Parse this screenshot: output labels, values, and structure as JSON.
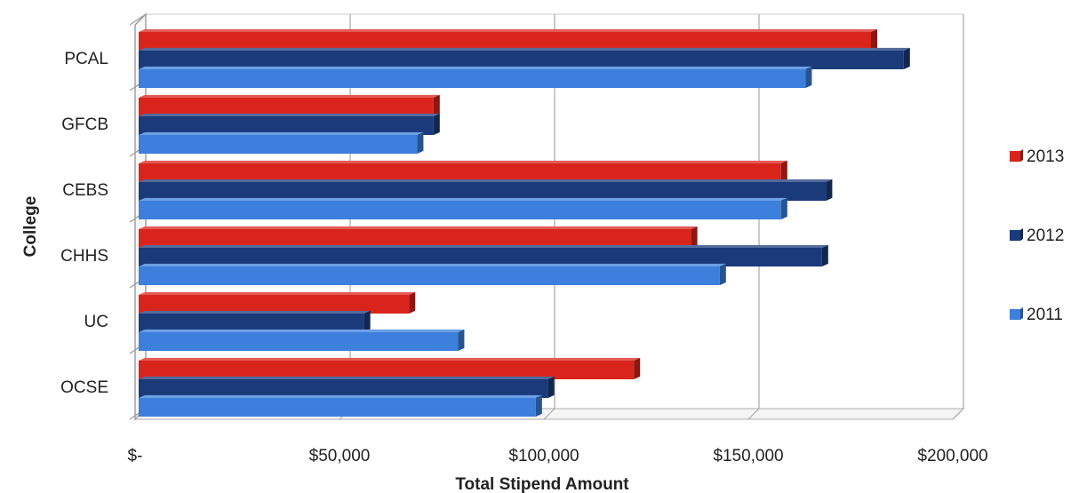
{
  "chart_data": {
    "type": "bar",
    "orientation": "horizontal",
    "three_d": true,
    "title": "",
    "xlabel": "Total Stipend Amount",
    "ylabel": "College",
    "categories": [
      "PCAL",
      "GFCB",
      "CEBS",
      "CHHS",
      "UC",
      "OCSE"
    ],
    "xlim": [
      0,
      200000
    ],
    "x_ticks": [
      0,
      50000,
      100000,
      150000,
      200000
    ],
    "x_tick_labels": [
      "$-",
      "$50,000",
      "$100,000",
      "$150,000",
      "$200,000"
    ],
    "grid": "vertical",
    "legend_position": "right",
    "series": [
      {
        "name": "2013",
        "color": "#d9241c",
        "values": [
          180000,
          73000,
          158000,
          136000,
          67000,
          122000
        ]
      },
      {
        "name": "2012",
        "color": "#1b3a7a",
        "values": [
          188000,
          73000,
          169000,
          168000,
          56000,
          101000
        ]
      },
      {
        "name": "2011",
        "color": "#3c7fdc",
        "values": [
          164000,
          69000,
          158000,
          143000,
          79000,
          98000
        ]
      }
    ]
  }
}
